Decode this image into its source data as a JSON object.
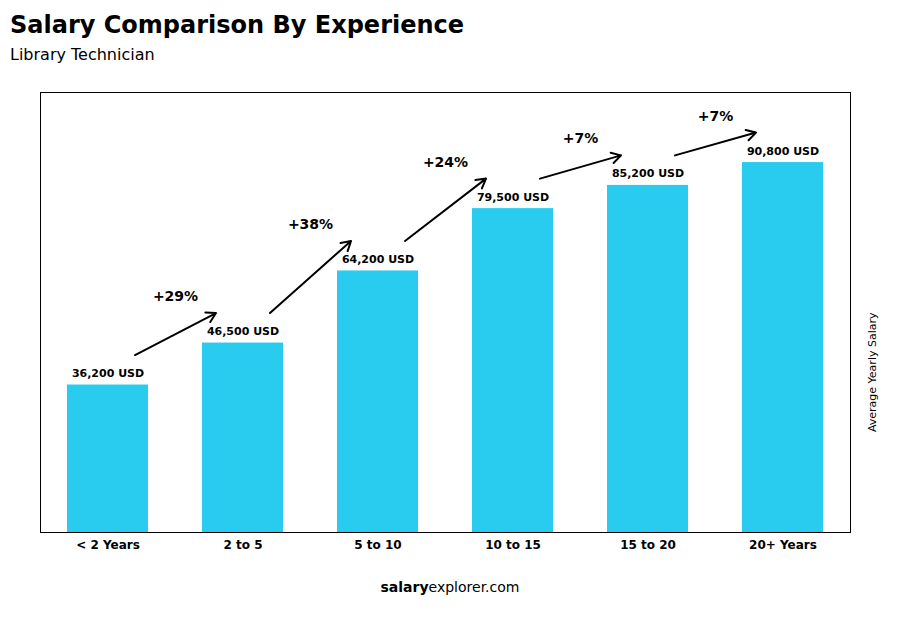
{
  "chart_data": {
    "type": "bar",
    "title": "Salary Comparison By Experience",
    "subtitle": "Library Technician",
    "ylabel": "Average Yearly Salary",
    "categories": [
      "< 2 Years",
      "2 to 5",
      "5 to 10",
      "10 to 15",
      "15 to 20",
      "20+ Years"
    ],
    "values": [
      36200,
      46500,
      64200,
      79500,
      85200,
      90800
    ],
    "value_labels": [
      "36,200 USD",
      "46,500 USD",
      "64,200 USD",
      "79,500 USD",
      "85,200 USD",
      "90,800 USD"
    ],
    "data_labels": true,
    "annotations": [
      "+29%",
      "+38%",
      "+24%",
      "+7%",
      "+7%"
    ],
    "watermark": [
      "salary",
      "explorer.com"
    ],
    "color": "#29ccee",
    "ylim": [
      0,
      108000
    ],
    "yticks": [],
    "tick_labels": "x",
    "grid": false
  }
}
